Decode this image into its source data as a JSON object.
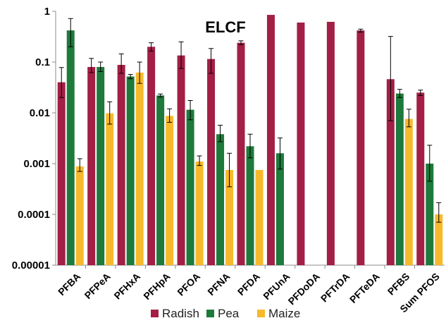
{
  "chart_data": {
    "type": "bar",
    "title": "ELCF",
    "xlabel": "",
    "ylabel": "",
    "yscale": "log",
    "ylim": [
      1e-05,
      1
    ],
    "yticks": [
      {
        "value": 1,
        "label": "1"
      },
      {
        "value": 0.1,
        "label": "0.1"
      },
      {
        "value": 0.01,
        "label": "0.01"
      },
      {
        "value": 0.001,
        "label": "0.001"
      },
      {
        "value": 0.0001,
        "label": "0.0001"
      },
      {
        "value": 1e-05,
        "label": "0.00001"
      }
    ],
    "grid": false,
    "legend_position": "bottom",
    "categories": [
      "PFBA",
      "PFPeA",
      "PFHxA",
      "PFHpA",
      "PFOA",
      "PFNA",
      "PFDA",
      "PFUnA",
      "PFDoDA",
      "PFTrDA",
      "PFTeDA",
      "PFBS",
      "Sum PFOS"
    ],
    "series": [
      {
        "name": "Radish",
        "color": "#A31F45",
        "values": [
          0.04,
          0.08,
          0.088,
          0.2,
          0.135,
          0.115,
          0.24,
          0.85,
          0.6,
          0.62,
          0.42,
          0.046,
          0.025
        ],
        "err_low": [
          0.02,
          0.062,
          0.06,
          0.165,
          0.075,
          0.06,
          0.22,
          null,
          null,
          null,
          0.39,
          0.007,
          0.022
        ],
        "err_high": [
          0.078,
          0.118,
          0.145,
          0.24,
          0.25,
          0.185,
          0.262,
          null,
          null,
          null,
          0.445,
          0.32,
          0.028
        ]
      },
      {
        "name": "Pea",
        "color": "#1D7A3B",
        "values": [
          0.42,
          0.08,
          0.052,
          0.022,
          0.0115,
          0.0038,
          0.0022,
          0.0016,
          null,
          null,
          null,
          0.024,
          0.001
        ],
        "err_low": [
          0.2,
          0.065,
          0.047,
          0.0205,
          0.0073,
          0.0027,
          0.0013,
          0.00078,
          null,
          null,
          null,
          0.02,
          0.00045
        ],
        "err_high": [
          0.72,
          0.1,
          0.057,
          0.0235,
          0.0175,
          0.0057,
          0.0038,
          0.0032,
          null,
          null,
          null,
          0.029,
          0.0023
        ]
      },
      {
        "name": "Maize",
        "color": "#F7B92C",
        "values": [
          0.00088,
          0.0098,
          0.062,
          0.0087,
          0.0011,
          0.00075,
          0.00075,
          null,
          null,
          null,
          null,
          0.0076,
          0.0001
        ],
        "err_low": [
          0.0007,
          0.006,
          0.038,
          0.0065,
          0.00092,
          0.00035,
          null,
          null,
          null,
          null,
          null,
          0.0053,
          7e-05
        ],
        "err_high": [
          0.00125,
          0.0165,
          0.1,
          0.012,
          0.00142,
          0.0016,
          null,
          null,
          null,
          null,
          null,
          0.0118,
          0.00017
        ]
      }
    ]
  }
}
